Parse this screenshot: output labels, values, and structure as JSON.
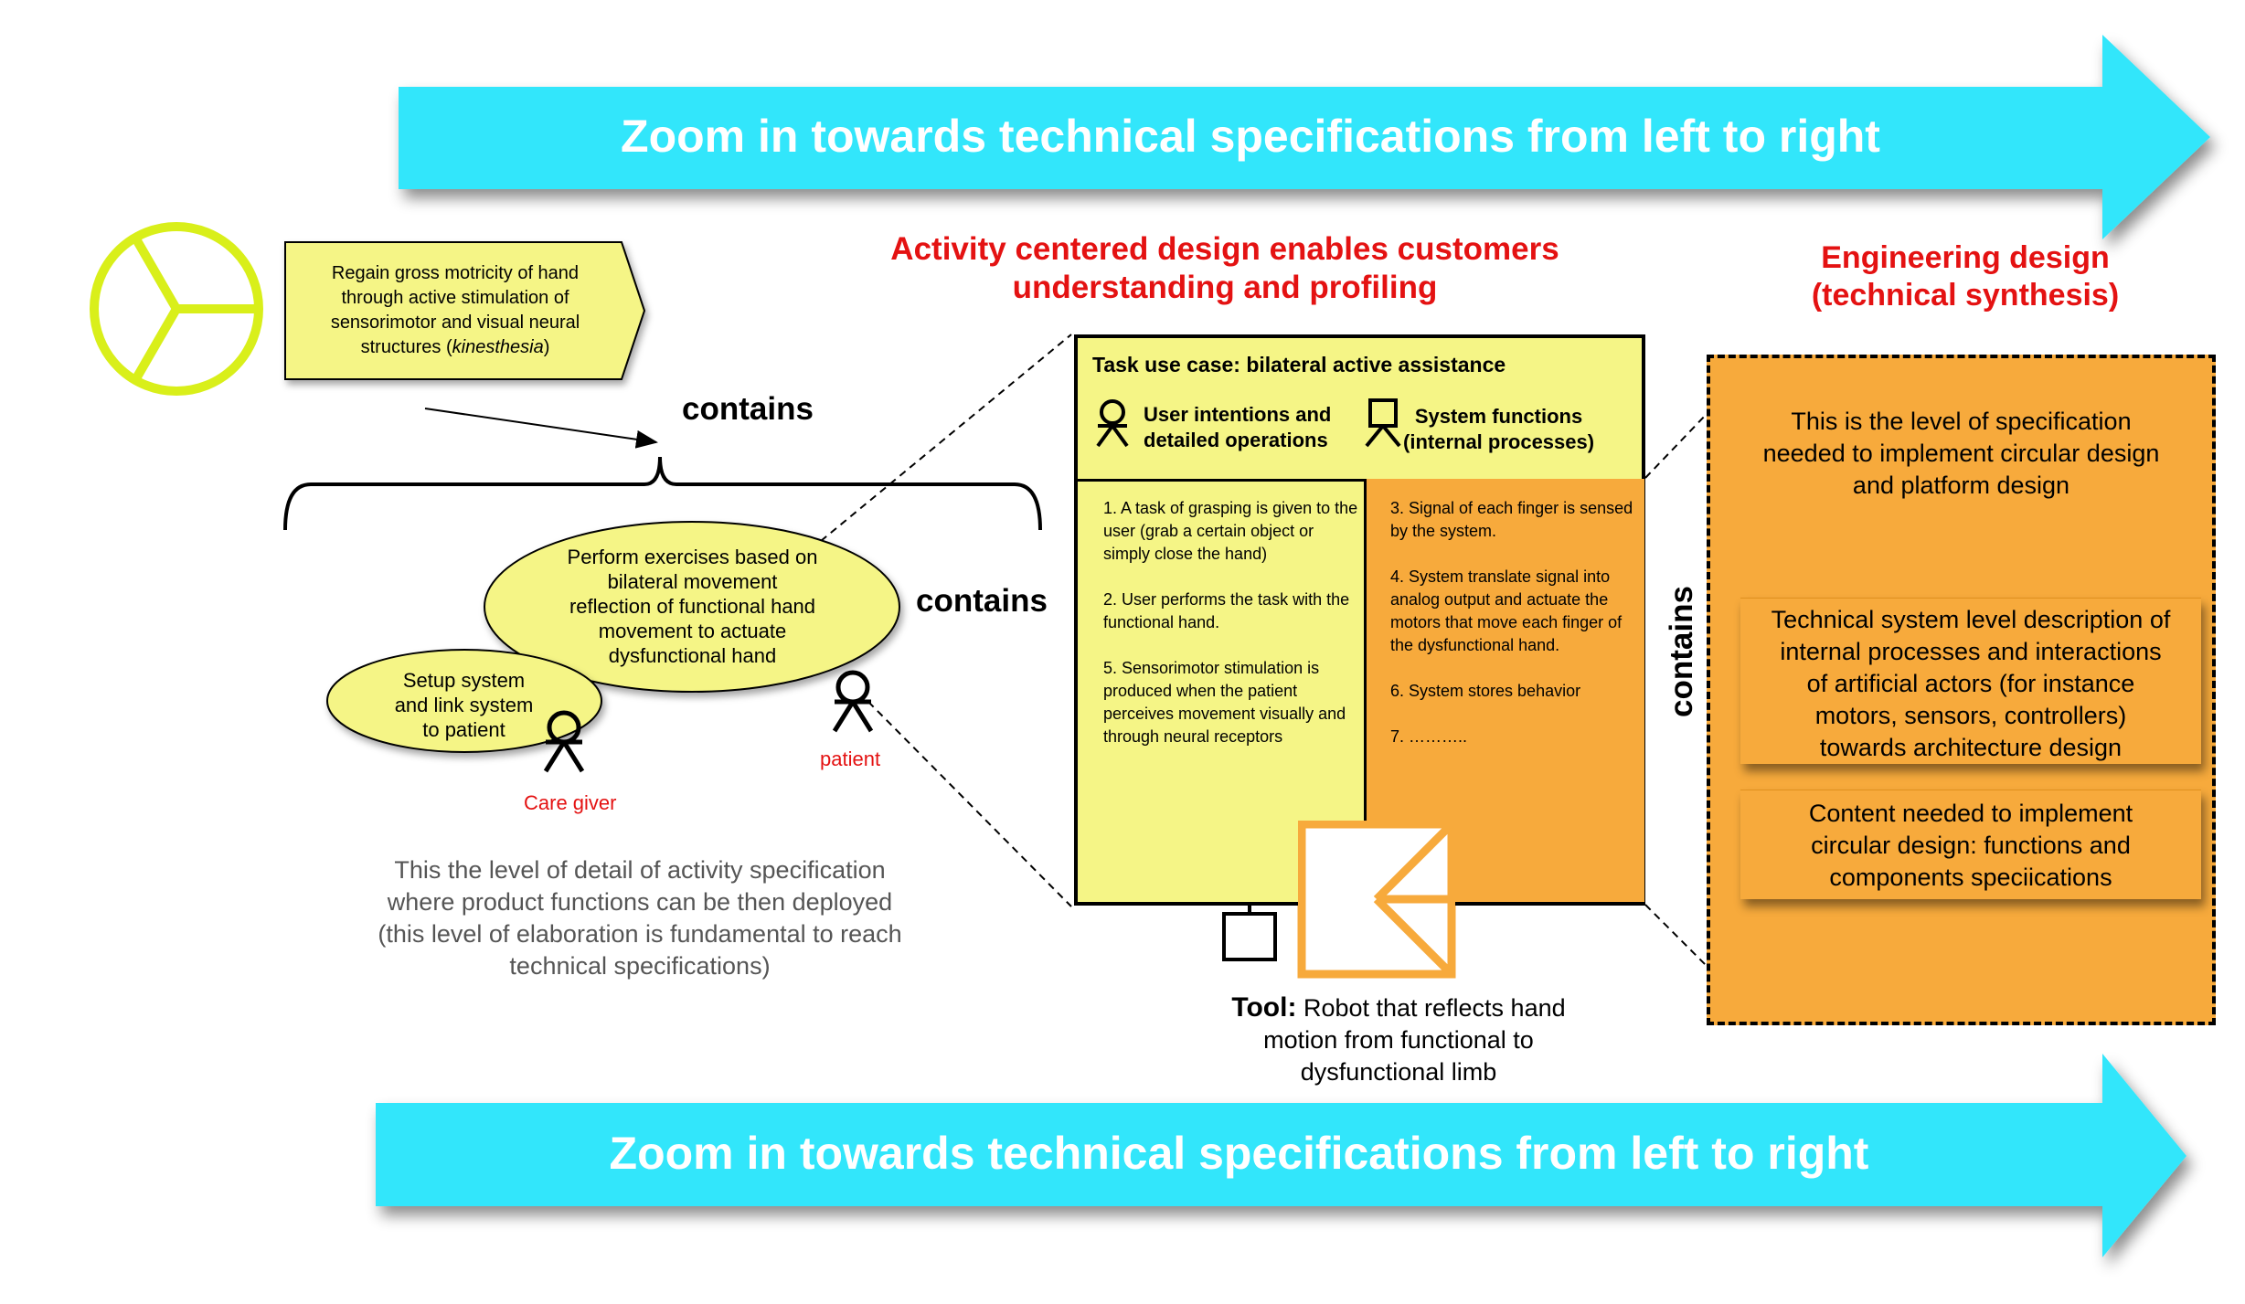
{
  "arrows": {
    "top_text": "Zoom in towards technical specifications from left to right",
    "bottom_text": "Zoom in towards technical specifications from left to right",
    "color": "#33e6fb"
  },
  "titles": {
    "activity_line1": "Activity centered design enables customers",
    "activity_line2": "understanding and profiling",
    "engineering_line1": "Engineering design",
    "engineering_line2": "(technical synthesis)",
    "color": "#e41212"
  },
  "goal": {
    "icon": "goal-circle-icon",
    "line1": "Regain gross motricity of hand",
    "line2": "through active stimulation of",
    "line3": "sensorimotor and visual neural",
    "line4_prefix": "structures (",
    "line4_italic": "kinesthesia",
    "line4_suffix": ")"
  },
  "labels": {
    "contains_top": "contains",
    "contains_mid": "contains",
    "contains_vertical": "contains"
  },
  "use_cases": {
    "exercises": [
      "Perform exercises based on",
      "bilateral movement",
      "reflection of functional hand",
      "movement to actuate",
      "dysfunctional hand"
    ],
    "setup": [
      "Setup system",
      "and link system",
      "to patient"
    ]
  },
  "actors": {
    "care_giver": "Care giver",
    "patient": "patient"
  },
  "note": {
    "lines": [
      "This the level of detail of activity specification",
      "where product functions can be then  deployed",
      "(this level of elaboration is fundamental to reach",
      "technical specifications)"
    ]
  },
  "task": {
    "title": "Task use case: bilateral active assistance",
    "user_head": [
      "User intentions and",
      "detailed operations"
    ],
    "system_head": [
      "System functions",
      "(internal processes)"
    ],
    "user_ops": [
      "1. A task of grasping is given to the user (grab a certain object or simply close the hand)",
      "2. User performs the task with the functional hand.",
      "5. Sensorimotor stimulation is produced when the patient perceives movement visually and through neural receptors"
    ],
    "system_ops": [
      "3. Signal of each finger is sensed by the system.",
      "4. System translate signal into analog output and actuate the motors that move each finger of the dysfunctional hand.",
      "6. System stores behavior",
      "7. ……….."
    ],
    "colors": {
      "user": "#f5f586",
      "system": "#f7aa3c"
    }
  },
  "tool": {
    "label": "Tool:",
    "line1": " Robot that reflects hand",
    "line2": "motion from functional to",
    "line3": "dysfunctional limb"
  },
  "engineering": {
    "intro": [
      "This is the level of specification",
      "needed to implement circular design",
      "and platform design"
    ],
    "card1": [
      "Technical system level description of",
      "internal processes and interactions",
      "of artificial actors (for instance",
      "motors, sensors, controllers)",
      "towards architecture design"
    ],
    "card2": [
      "Content needed to implement",
      "circular design: functions and",
      "components speciications"
    ]
  }
}
